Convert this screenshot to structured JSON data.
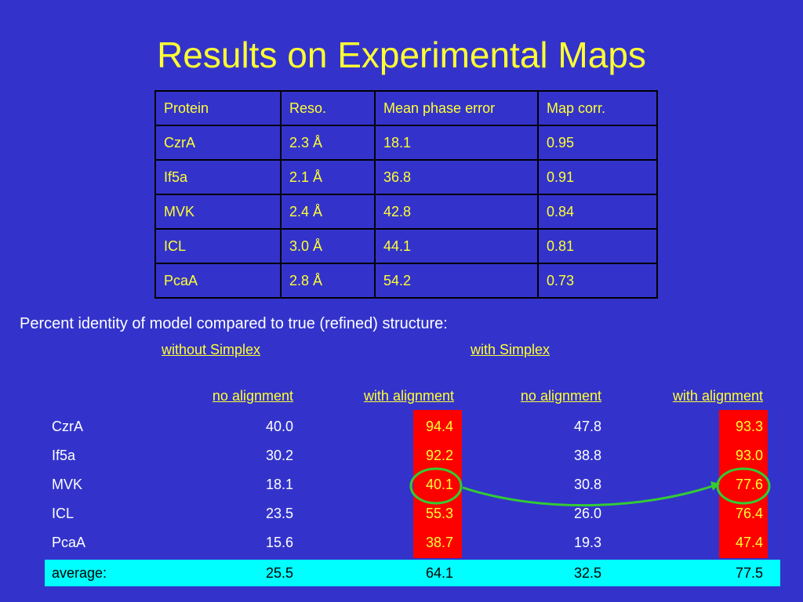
{
  "title": "Results on Experimental Maps",
  "top_table": {
    "headers": [
      "Protein",
      "Reso.",
      "Mean phase error",
      "Map corr."
    ],
    "rows": [
      [
        "CzrA",
        "2.3 Å",
        "18.1",
        "0.95"
      ],
      [
        "If5a",
        "2.1 Å",
        "36.8",
        "0.91"
      ],
      [
        "MVK",
        "2.4 Å",
        "42.8",
        "0.84"
      ],
      [
        "ICL",
        "3.0 Å",
        "44.1",
        "0.81"
      ],
      [
        "PcaA",
        "2.8 Å",
        "54.2",
        "0.73"
      ]
    ]
  },
  "identity": {
    "intro": "Percent identity of model compared to true (refined) structure:",
    "group_without": "without Simplex",
    "group_with": "with Simplex",
    "col_headers": [
      "no alignment",
      "with alignment",
      "no alignment",
      "with alignment"
    ],
    "rows": [
      {
        "name": "CzrA",
        "values": [
          "40.0",
          "94.4",
          "47.8",
          "93.3"
        ]
      },
      {
        "name": "If5a",
        "values": [
          "30.2",
          "92.2",
          "38.8",
          "93.0"
        ]
      },
      {
        "name": "MVK",
        "values": [
          "18.1",
          "40.1",
          "30.8",
          "77.6"
        ]
      },
      {
        "name": "ICL",
        "values": [
          "23.5",
          "55.3",
          "26.0",
          "76.4"
        ]
      },
      {
        "name": "PcaA",
        "values": [
          "15.6",
          "38.7",
          "19.3",
          "47.4"
        ]
      }
    ],
    "average": {
      "name": "average:",
      "values": [
        "25.5",
        "64.1",
        "32.5",
        "77.5"
      ]
    }
  },
  "colors": {
    "background": "#3333cc",
    "title": "#ffff33",
    "highlight_red": "#ff0000",
    "average_bar": "#00ffff",
    "annotation_green": "#33cc33"
  }
}
